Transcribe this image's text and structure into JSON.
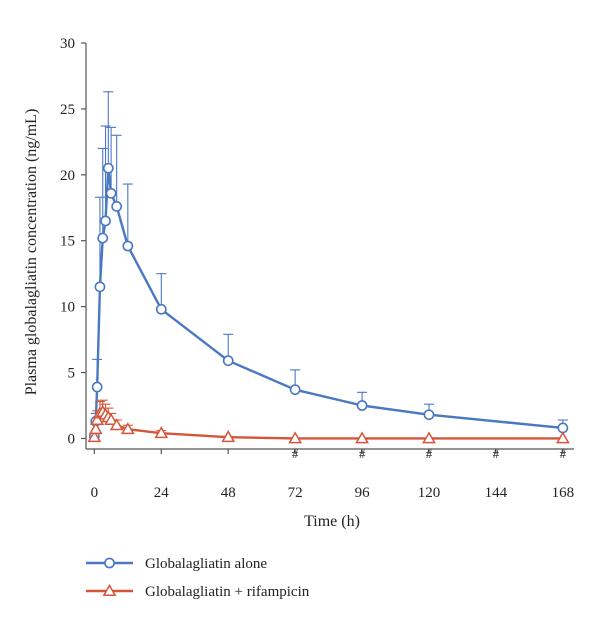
{
  "chart_data": {
    "type": "line",
    "xlabel": "Time (h)",
    "ylabel": "Plasma globalagliatin concentration (ng/mL)",
    "xlim": [
      -3,
      172
    ],
    "ylim": [
      -0.8,
      30
    ],
    "xticks": [
      0,
      24,
      48,
      72,
      96,
      120,
      144,
      168
    ],
    "yticks": [
      0,
      5,
      10,
      15,
      20,
      25,
      30
    ],
    "grid": false,
    "legend_position": "bottom-left",
    "significance_marker": "#",
    "significance_x": [
      72,
      96,
      120,
      144,
      168
    ],
    "series": [
      {
        "name": "Globalagliatin alone",
        "color": "#4a78c2",
        "marker": "circle",
        "points": [
          {
            "x": 0,
            "y": 0.2,
            "err": 0
          },
          {
            "x": 0.5,
            "y": 1.3,
            "err": 0.6
          },
          {
            "x": 1,
            "y": 3.9,
            "err": 2.1
          },
          {
            "x": 2,
            "y": 11.5,
            "err": 6.8
          },
          {
            "x": 3,
            "y": 15.2,
            "err": 6.8
          },
          {
            "x": 4,
            "y": 16.5,
            "err": 7.2
          },
          {
            "x": 5,
            "y": 20.5,
            "err": 5.8
          },
          {
            "x": 6,
            "y": 18.6,
            "err": 5.0
          },
          {
            "x": 8,
            "y": 17.6,
            "err": 5.4
          },
          {
            "x": 12,
            "y": 14.6,
            "err": 4.7
          },
          {
            "x": 24,
            "y": 9.8,
            "err": 2.7
          },
          {
            "x": 48,
            "y": 5.9,
            "err": 2.0
          },
          {
            "x": 72,
            "y": 3.7,
            "err": 1.5
          },
          {
            "x": 96,
            "y": 2.5,
            "err": 1.0
          },
          {
            "x": 120,
            "y": 1.8,
            "err": 0.8
          },
          {
            "x": 168,
            "y": 0.8,
            "err": 0.6
          }
        ]
      },
      {
        "name": "Globalagliatin + rifampicin",
        "color": "#d4553a",
        "marker": "triangle",
        "points": [
          {
            "x": 0,
            "y": 0.1,
            "err": 0
          },
          {
            "x": 0.5,
            "y": 0.7,
            "err": 0.4
          },
          {
            "x": 1,
            "y": 1.4,
            "err": 0.7
          },
          {
            "x": 2,
            "y": 1.9,
            "err": 0.9
          },
          {
            "x": 3,
            "y": 2.0,
            "err": 0.9
          },
          {
            "x": 4,
            "y": 1.8,
            "err": 0.8
          },
          {
            "x": 5,
            "y": 1.6,
            "err": 0.7
          },
          {
            "x": 6,
            "y": 1.4,
            "err": 0.5
          },
          {
            "x": 8,
            "y": 1.0,
            "err": 0.4
          },
          {
            "x": 12,
            "y": 0.7,
            "err": 0.3
          },
          {
            "x": 24,
            "y": 0.4,
            "err": 0.2
          },
          {
            "x": 48,
            "y": 0.1,
            "err": 0.05
          },
          {
            "x": 72,
            "y": 0.0,
            "err": 0
          },
          {
            "x": 96,
            "y": 0.0,
            "err": 0
          },
          {
            "x": 120,
            "y": 0.0,
            "err": 0
          },
          {
            "x": 168,
            "y": 0.0,
            "err": 0
          }
        ]
      }
    ]
  }
}
